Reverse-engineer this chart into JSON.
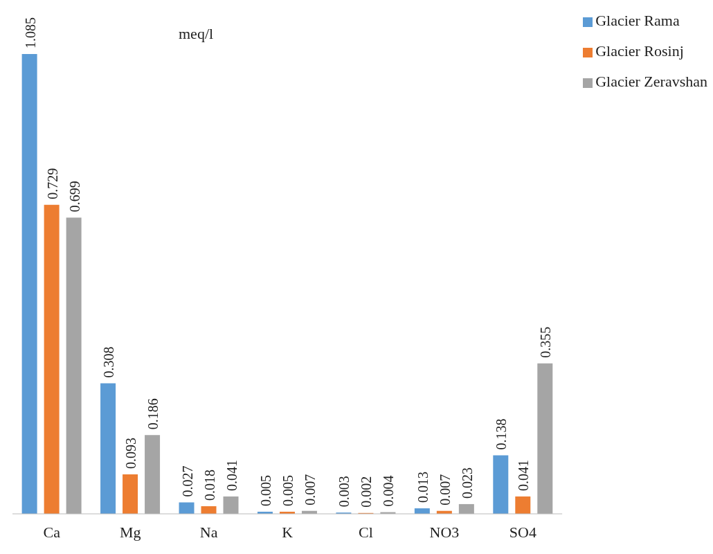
{
  "chart_data": {
    "type": "bar",
    "categories": [
      "Ca",
      "Mg",
      "Na",
      "K",
      "Cl",
      "NO3",
      "SO4"
    ],
    "series": [
      {
        "name": "Glacier Rama",
        "color": "#5b9bd5",
        "values": [
          1.085,
          0.308,
          0.027,
          0.005,
          0.003,
          0.013,
          0.138
        ]
      },
      {
        "name": "Glacier Rosinj",
        "color": "#ed7d31",
        "values": [
          0.729,
          0.093,
          0.018,
          0.005,
          0.002,
          0.007,
          0.041
        ]
      },
      {
        "name": "Glacier Zeravshan",
        "color": "#a5a5a5",
        "values": [
          0.699,
          0.186,
          0.041,
          0.007,
          0.004,
          0.023,
          0.355
        ]
      }
    ],
    "data_labels": true,
    "legend": "top right",
    "grid": false,
    "annotations": [
      "meq/l"
    ]
  }
}
